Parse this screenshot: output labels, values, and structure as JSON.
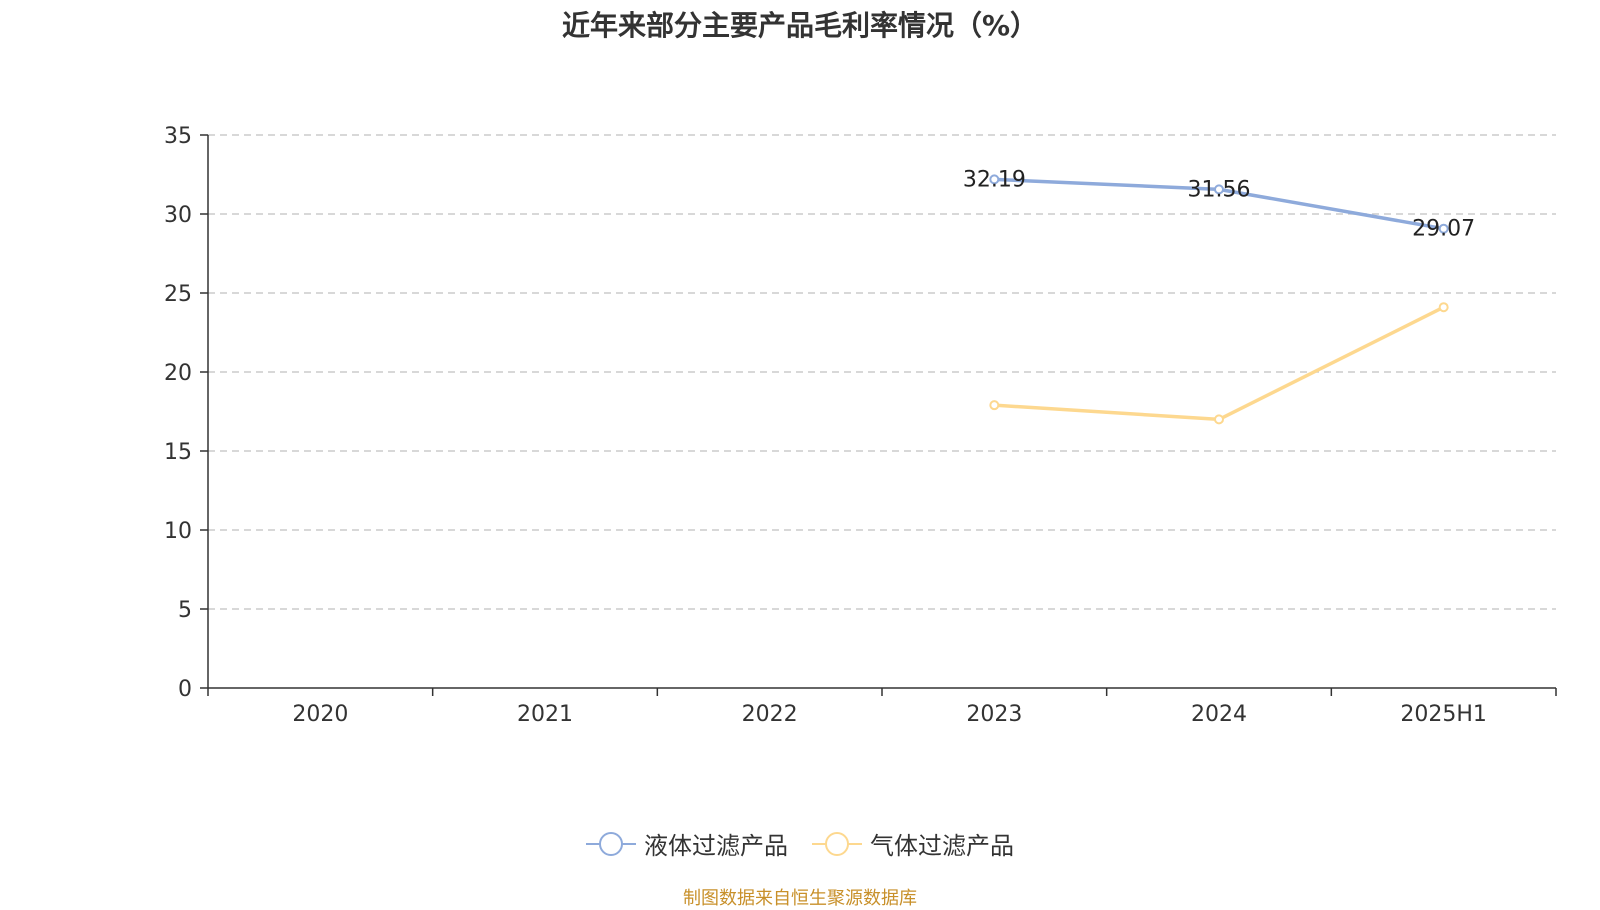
{
  "chart_data": {
    "type": "line",
    "title": "近年来部分主要产品毛利率情况（%）",
    "categories": [
      "2020",
      "2021",
      "2022",
      "2023",
      "2024",
      "2025H1"
    ],
    "ylim": [
      0,
      35
    ],
    "yticks": [
      0,
      5,
      10,
      15,
      20,
      25,
      30,
      35
    ],
    "grid": true,
    "legend_position": "bottom",
    "series": [
      {
        "name": "液体过滤产品",
        "color": "#8eaadb",
        "values": [
          null,
          null,
          null,
          32.19,
          31.56,
          29.07
        ],
        "labels": [
          null,
          null,
          null,
          "32.19",
          "31.56",
          "29.07"
        ]
      },
      {
        "name": "气体过滤产品",
        "color": "#fdd88f",
        "values": [
          null,
          null,
          null,
          17.9,
          17.0,
          24.1
        ],
        "labels": [
          null,
          null,
          null,
          null,
          null,
          null
        ]
      }
    ]
  },
  "source": "制图数据来自恒生聚源数据库"
}
